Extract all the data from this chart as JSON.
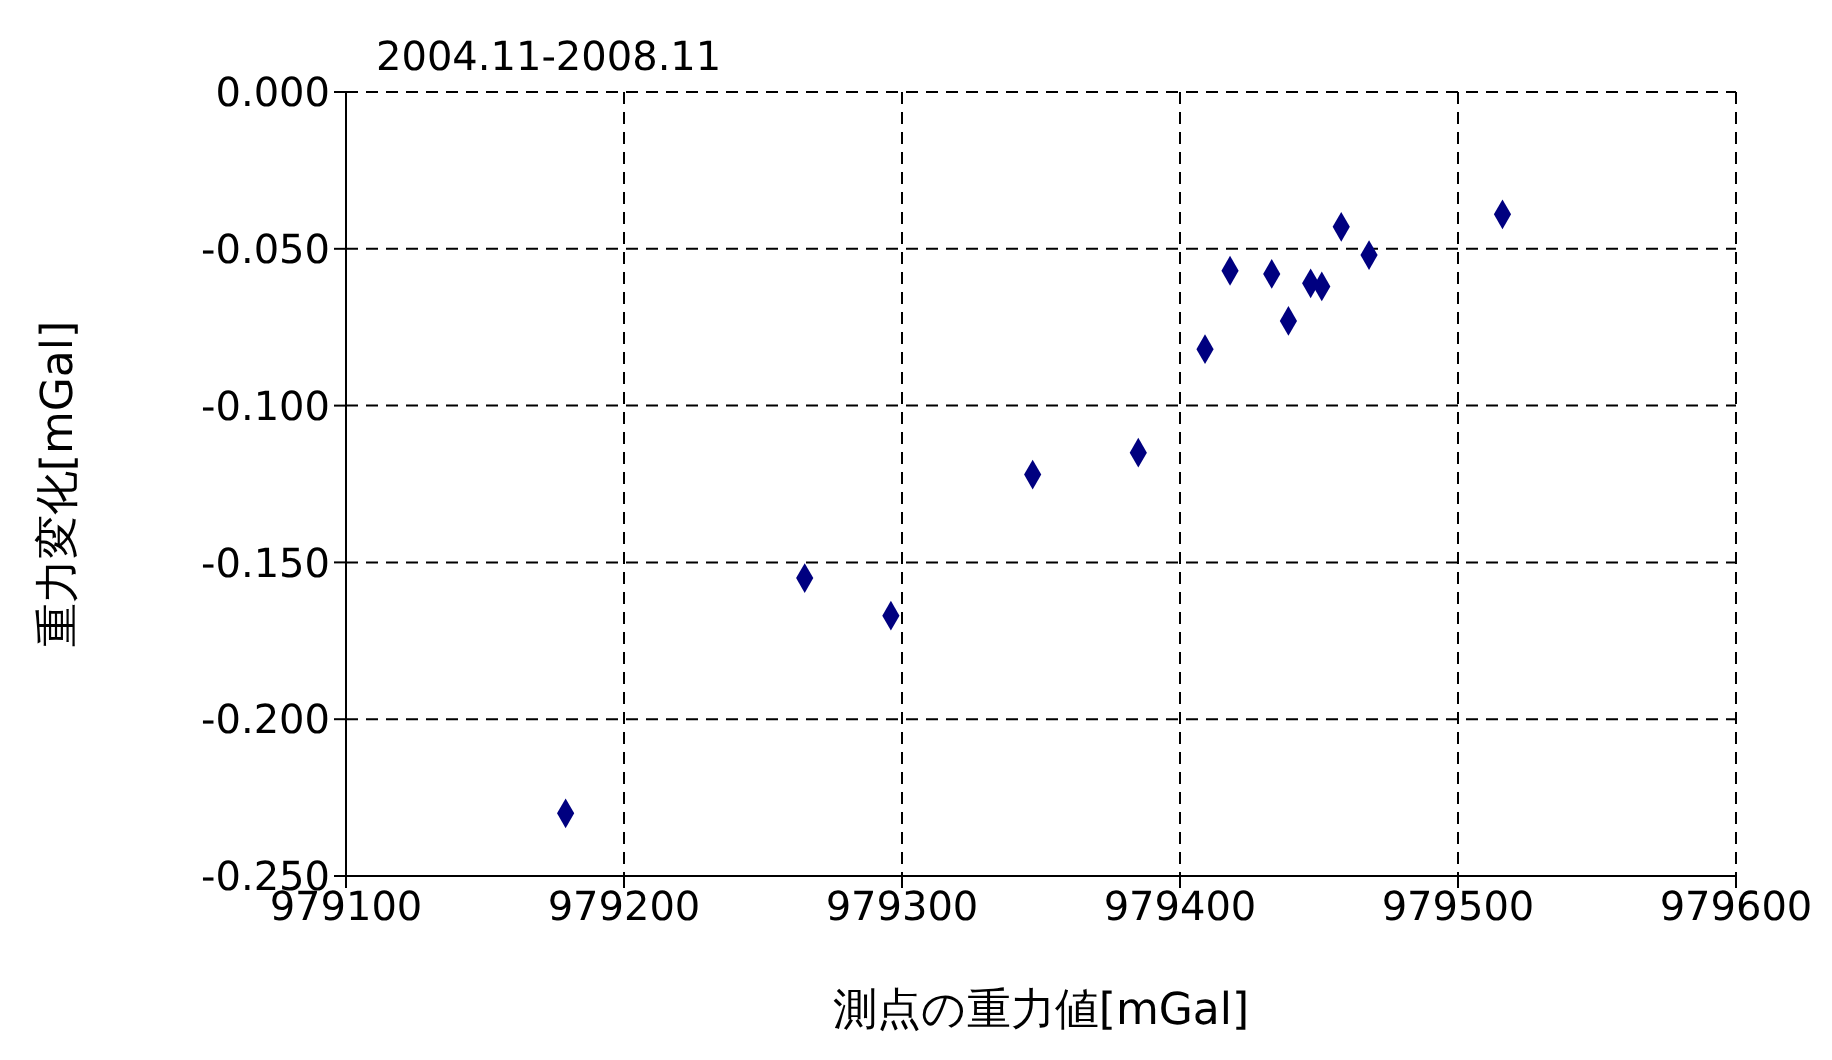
{
  "chart_data": {
    "type": "scatter",
    "title": "2004.11-2008.11",
    "xlabel": "測点の重力値[mGal]",
    "ylabel": "重力変化[mGal]",
    "x": [
      979179,
      979265,
      979296,
      979347,
      979385,
      979409,
      979418,
      979433,
      979439,
      979447,
      979451,
      979458,
      979468,
      979516
    ],
    "series": [
      {
        "color": "#000080",
        "values": [
          -0.23,
          -0.155,
          -0.167,
          -0.122,
          -0.115,
          -0.082,
          -0.057,
          -0.058,
          -0.073,
          -0.061,
          -0.062,
          -0.043,
          -0.052,
          -0.039
        ]
      }
    ],
    "xlim": [
      979100,
      979600
    ],
    "xticks": [
      979100,
      979200,
      979300,
      979400,
      979500,
      979600
    ],
    "ylim": [
      -0.25,
      0
    ],
    "yticks": [
      {
        "value": 0,
        "label": "0.000"
      },
      {
        "value": -0.05,
        "label": "-0.050"
      },
      {
        "value": -0.1,
        "label": "-0.100"
      },
      {
        "value": -0.15,
        "label": "-0.150"
      },
      {
        "value": -0.2,
        "label": "-0.200"
      },
      {
        "value": -0.25,
        "label": "-0.250"
      }
    ],
    "grid": true,
    "line_style": "dashed",
    "marker": "diamond"
  }
}
